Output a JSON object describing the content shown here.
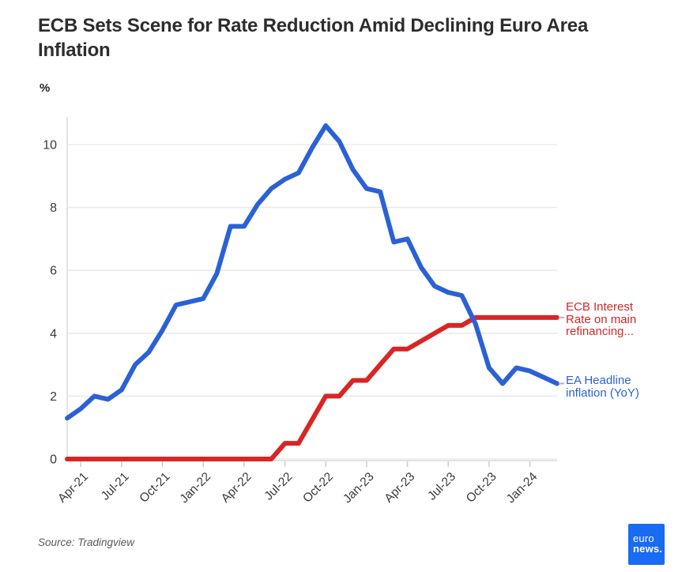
{
  "header": {
    "title": "ECB Sets Scene for Rate Reduction Amid Declining Euro Area Inflation"
  },
  "chart_data": {
    "type": "line",
    "unit_label": "%",
    "months": [
      "Mar-21",
      "Apr-21",
      "May-21",
      "Jun-21",
      "Jul-21",
      "Aug-21",
      "Sep-21",
      "Oct-21",
      "Nov-21",
      "Dec-21",
      "Jan-22",
      "Feb-22",
      "Mar-22",
      "Apr-22",
      "May-22",
      "Jun-22",
      "Jul-22",
      "Aug-22",
      "Sep-22",
      "Oct-22",
      "Nov-22",
      "Dec-22",
      "Jan-23",
      "Feb-23",
      "Mar-23",
      "Apr-23",
      "May-23",
      "Jun-23",
      "Jul-23",
      "Aug-23",
      "Sep-23",
      "Oct-23",
      "Nov-23",
      "Dec-23",
      "Jan-24",
      "Feb-24",
      "Mar-24"
    ],
    "series": [
      {
        "name": "ECB Interest Rate on main refinancing...",
        "color": "#d92525",
        "values": [
          0,
          0,
          0,
          0,
          0,
          0,
          0,
          0,
          0,
          0,
          0,
          0,
          0,
          0,
          0,
          0,
          0.5,
          0.5,
          1.25,
          2.0,
          2.0,
          2.5,
          2.5,
          3.0,
          3.5,
          3.5,
          3.75,
          4.0,
          4.25,
          4.25,
          4.5,
          4.5,
          4.5,
          4.5,
          4.5,
          4.5,
          4.5
        ]
      },
      {
        "name": "EA Headline inflation (YoY)",
        "color": "#2b61d6",
        "values": [
          1.3,
          1.6,
          2.0,
          1.9,
          2.2,
          3.0,
          3.4,
          4.1,
          4.9,
          5.0,
          5.1,
          5.9,
          7.4,
          7.4,
          8.1,
          8.6,
          8.9,
          9.1,
          9.9,
          10.6,
          10.1,
          9.2,
          8.6,
          8.5,
          6.9,
          7.0,
          6.1,
          5.5,
          5.3,
          5.2,
          4.3,
          2.9,
          2.4,
          2.9,
          2.8,
          2.6,
          2.4
        ]
      }
    ],
    "x_ticks": [
      {
        "index": 1,
        "label": "Apr-21"
      },
      {
        "index": 4,
        "label": "Jul-21"
      },
      {
        "index": 7,
        "label": "Oct-21"
      },
      {
        "index": 10,
        "label": "Jan-22"
      },
      {
        "index": 13,
        "label": "Apr-22"
      },
      {
        "index": 16,
        "label": "Jul-22"
      },
      {
        "index": 19,
        "label": "Oct-22"
      },
      {
        "index": 22,
        "label": "Jan-23"
      },
      {
        "index": 25,
        "label": "Apr-23"
      },
      {
        "index": 28,
        "label": "Jul-23"
      },
      {
        "index": 31,
        "label": "Oct-23"
      },
      {
        "index": 34,
        "label": "Jan-24"
      }
    ],
    "y_ticks": [
      0,
      2,
      4,
      6,
      8,
      10
    ],
    "ylim": [
      0,
      11
    ],
    "grid": "horizontal",
    "legend_position": "right"
  },
  "legend": {
    "ecb": {
      "lines": [
        "ECB Interest",
        "Rate on main",
        "refinancing..."
      ]
    },
    "ea": {
      "lines": [
        "EA Headline",
        "inflation (YoY)"
      ]
    }
  },
  "footer": {
    "source": "Source: Tradingview",
    "logo": {
      "line1": "euro",
      "line2": "news."
    }
  },
  "colors": {
    "rate_line": "#d92525",
    "inflation_line": "#2b61d6",
    "logo_bg": "#186bf2",
    "gridline": "#eaeaea",
    "axis": "#dadada",
    "tick": "#cccccc",
    "tick_label": "#3a3a3a",
    "legend_dash": "#b5b5b5"
  }
}
